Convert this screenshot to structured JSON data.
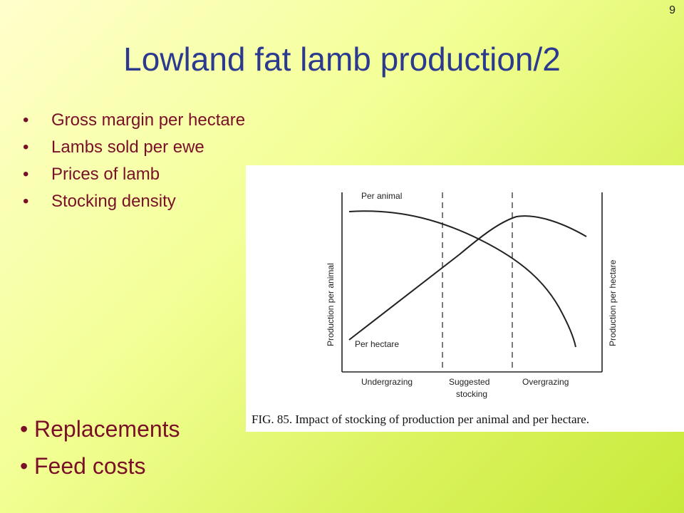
{
  "slide": {
    "number": "9",
    "title": "Lowland fat lamb production/2",
    "bullets_top": [
      "Gross margin per hectare",
      "Lambs sold per ewe",
      "Prices of lamb",
      "Stocking density"
    ],
    "bullets_bottom": [
      "Replacements",
      "Feed costs"
    ]
  },
  "figure": {
    "y_left_label": "Production per animal",
    "y_right_label": "Production per hectare",
    "curve_per_animal_label": "Per animal",
    "curve_per_hectare_label": "Per hectare",
    "zone_left": "Undergrazing",
    "zone_middle_line1": "Suggested",
    "zone_middle_line2": "stocking",
    "zone_right": "Overgrazing",
    "caption": "FIG. 85. Impact of stocking of production per animal and per hectare.",
    "colors": {
      "line": "#222222",
      "background": "#ffffff"
    }
  }
}
